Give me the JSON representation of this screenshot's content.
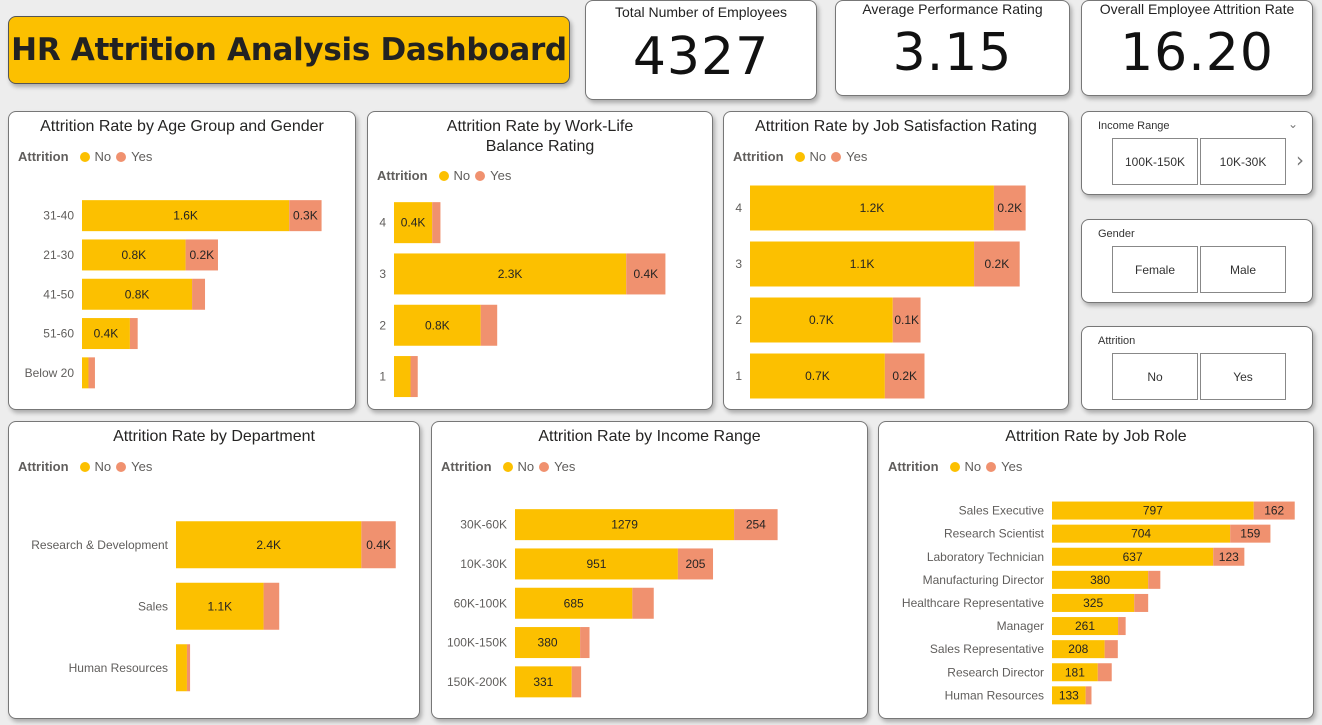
{
  "title": "HR Attrition Analysis Dashboard",
  "kpis": {
    "employees": {
      "label": "Total Number of Employees",
      "value": "4327"
    },
    "performance": {
      "label": "Average Performance Rating",
      "value": "3.15"
    },
    "attrition": {
      "label": "Overall Employee Attrition Rate",
      "value": "16.20"
    }
  },
  "legend": {
    "title": "Attrition",
    "no": "No",
    "yes": "Yes"
  },
  "colors": {
    "no": "#fcc000",
    "yes": "#f0916f"
  },
  "slicers": {
    "income": {
      "title": "Income Range",
      "options": [
        "100K-150K",
        "10K-30K"
      ]
    },
    "gender": {
      "title": "Gender",
      "options": [
        "Female",
        "Male"
      ]
    },
    "attrition": {
      "title": "Attrition",
      "options": [
        "No",
        "Yes"
      ]
    }
  },
  "chart_data": [
    {
      "id": "age",
      "type": "bar",
      "stacked": true,
      "orientation": "horizontal",
      "title": "Attrition Rate by Age Group and Gender",
      "categories": [
        "31-40",
        "21-30",
        "41-50",
        "51-60",
        "Below 20"
      ],
      "series": [
        {
          "name": "No",
          "values": [
            1600,
            800,
            850,
            370,
            50
          ],
          "labels": [
            "1.6K",
            "0.8K",
            "0.8K",
            "0.4K",
            ""
          ]
        },
        {
          "name": "Yes",
          "values": [
            250,
            250,
            100,
            60,
            50
          ],
          "labels": [
            "0.3K",
            "0.2K",
            "",
            "",
            ""
          ]
        }
      ]
    },
    {
      "id": "wlb",
      "type": "bar",
      "stacked": true,
      "orientation": "horizontal",
      "title": "Attrition Rate by Work-Life Balance Rating",
      "categories": [
        "4",
        "3",
        "2",
        "1"
      ],
      "series": [
        {
          "name": "No",
          "values": [
            370,
            2250,
            840,
            160
          ],
          "labels": [
            "0.4K",
            "2.3K",
            "0.8K",
            ""
          ]
        },
        {
          "name": "Yes",
          "values": [
            80,
            380,
            160,
            70
          ],
          "labels": [
            "",
            "0.4K",
            "",
            ""
          ]
        }
      ]
    },
    {
      "id": "js",
      "type": "bar",
      "stacked": true,
      "orientation": "horizontal",
      "title": "Attrition Rate by Job Satisfaction Rating",
      "categories": [
        "4",
        "3",
        "2",
        "1"
      ],
      "series": [
        {
          "name": "No",
          "values": [
            1230,
            1130,
            720,
            680
          ],
          "labels": [
            "1.2K",
            "1.1K",
            "0.7K",
            "0.7K"
          ]
        },
        {
          "name": "Yes",
          "values": [
            160,
            230,
            140,
            200
          ],
          "labels": [
            "0.2K",
            "0.2K",
            "0.1K",
            "0.2K"
          ]
        }
      ]
    },
    {
      "id": "dept",
      "type": "bar",
      "stacked": true,
      "orientation": "horizontal",
      "title": "Attrition Rate by Department",
      "categories": [
        "Research & Development",
        "Sales",
        "Human Resources"
      ],
      "series": [
        {
          "name": "No",
          "values": [
            2370,
            1120,
            140
          ],
          "labels": [
            "2.4K",
            "1.1K",
            ""
          ]
        },
        {
          "name": "Yes",
          "values": [
            440,
            200,
            40
          ],
          "labels": [
            "0.4K",
            "",
            ""
          ]
        }
      ]
    },
    {
      "id": "income",
      "type": "bar",
      "stacked": true,
      "orientation": "horizontal",
      "title": "Attrition Rate by Income Range",
      "categories": [
        "30K-60K",
        "10K-30K",
        "60K-100K",
        "100K-150K",
        "150K-200K"
      ],
      "series": [
        {
          "name": "No",
          "values": [
            1279,
            951,
            685,
            380,
            331
          ],
          "labels": [
            "1279",
            "951",
            "685",
            "380",
            "331"
          ]
        },
        {
          "name": "Yes",
          "values": [
            254,
            205,
            125,
            55,
            55
          ],
          "labels": [
            "254",
            "205",
            "",
            "",
            ""
          ]
        }
      ]
    },
    {
      "id": "role",
      "type": "bar",
      "stacked": true,
      "orientation": "horizontal",
      "title": "Attrition Rate by Job Role",
      "categories": [
        "Sales Executive",
        "Research Scientist",
        "Laboratory Technician",
        "Manufacturing Director",
        "Healthcare Representative",
        "Manager",
        "Sales Representative",
        "Research Director",
        "Human Resources"
      ],
      "series": [
        {
          "name": "No",
          "values": [
            797,
            704,
            637,
            380,
            325,
            261,
            208,
            181,
            133
          ],
          "labels": [
            "797",
            "704",
            "637",
            "380",
            "325",
            "261",
            "208",
            "181",
            "133"
          ]
        },
        {
          "name": "Yes",
          "values": [
            162,
            159,
            123,
            48,
            55,
            30,
            52,
            55,
            23
          ],
          "labels": [
            "162",
            "159",
            "123",
            "",
            "",
            "",
            "",
            "",
            ""
          ]
        }
      ]
    }
  ]
}
